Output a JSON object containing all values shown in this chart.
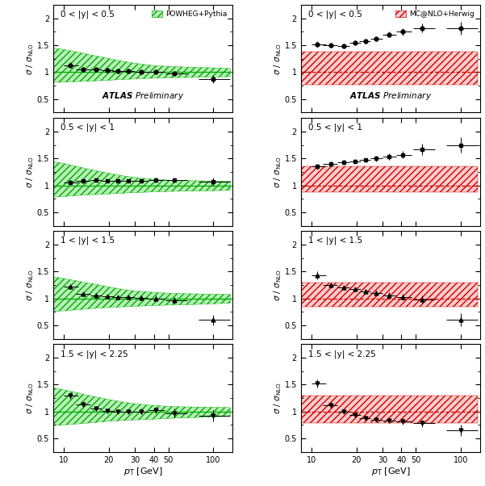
{
  "rapidity_labels": [
    "0 < |y| < 0.5",
    "0.5 < |y| < 1",
    "1 < |y| < 1.5",
    "1.5 < |y| < 2.25"
  ],
  "pt_centers": [
    11,
    13.5,
    16.5,
    19.5,
    23,
    27,
    33,
    41,
    55,
    100
  ],
  "pt_xerr_low": [
    1,
    1.5,
    1.5,
    1.5,
    2,
    2,
    3,
    4,
    7,
    20
  ],
  "pt_xerr_high": [
    1.5,
    1.5,
    1.5,
    2,
    2,
    3,
    4,
    6,
    12,
    30
  ],
  "powheg_y": [
    [
      1.13,
      1.05,
      1.05,
      1.03,
      1.02,
      1.02,
      1.01,
      1.0,
      0.98,
      0.87
    ],
    [
      1.06,
      1.08,
      1.1,
      1.09,
      1.09,
      1.09,
      1.09,
      1.1,
      1.1,
      1.07
    ],
    [
      1.22,
      1.08,
      1.05,
      1.04,
      1.03,
      1.02,
      1.01,
      1.0,
      0.97,
      0.6
    ],
    [
      1.3,
      1.13,
      1.05,
      1.01,
      1.0,
      1.0,
      1.0,
      1.02,
      0.97,
      0.92
    ]
  ],
  "powheg_yerr": [
    [
      0.05,
      0.04,
      0.03,
      0.03,
      0.03,
      0.03,
      0.03,
      0.03,
      0.04,
      0.07
    ],
    [
      0.04,
      0.04,
      0.03,
      0.03,
      0.03,
      0.03,
      0.03,
      0.04,
      0.05,
      0.07
    ],
    [
      0.05,
      0.04,
      0.04,
      0.03,
      0.03,
      0.03,
      0.04,
      0.05,
      0.06,
      0.1
    ],
    [
      0.06,
      0.05,
      0.04,
      0.04,
      0.04,
      0.04,
      0.05,
      0.06,
      0.08,
      0.1
    ]
  ],
  "powheg_band_lo": [
    [
      0.82,
      0.83,
      0.84,
      0.85,
      0.86,
      0.87,
      0.88,
      0.89,
      0.9,
      0.91
    ],
    [
      0.8,
      0.82,
      0.83,
      0.84,
      0.85,
      0.86,
      0.87,
      0.88,
      0.89,
      0.9
    ],
    [
      0.78,
      0.8,
      0.82,
      0.83,
      0.84,
      0.85,
      0.86,
      0.87,
      0.88,
      0.9
    ],
    [
      0.76,
      0.78,
      0.8,
      0.82,
      0.83,
      0.84,
      0.85,
      0.86,
      0.88,
      0.9
    ]
  ],
  "powheg_band_hi": [
    [
      1.4,
      1.35,
      1.3,
      1.26,
      1.22,
      1.18,
      1.15,
      1.12,
      1.1,
      1.08
    ],
    [
      1.38,
      1.32,
      1.27,
      1.23,
      1.19,
      1.16,
      1.13,
      1.11,
      1.09,
      1.08
    ],
    [
      1.35,
      1.3,
      1.26,
      1.22,
      1.18,
      1.15,
      1.13,
      1.11,
      1.09,
      1.08
    ],
    [
      1.38,
      1.32,
      1.27,
      1.23,
      1.19,
      1.16,
      1.13,
      1.11,
      1.09,
      1.08
    ]
  ],
  "mcnlo_y": [
    [
      1.52,
      1.5,
      1.49,
      1.55,
      1.57,
      1.62,
      1.7,
      1.75,
      1.82,
      1.82
    ],
    [
      1.35,
      1.4,
      1.43,
      1.45,
      1.47,
      1.5,
      1.53,
      1.57,
      1.67,
      1.75
    ],
    [
      1.43,
      1.25,
      1.2,
      1.17,
      1.13,
      1.1,
      1.06,
      1.02,
      0.98,
      0.6
    ],
    [
      1.52,
      1.12,
      1.0,
      0.93,
      0.88,
      0.85,
      0.83,
      0.82,
      0.78,
      0.65
    ]
  ],
  "mcnlo_yerr": [
    [
      0.05,
      0.04,
      0.04,
      0.04,
      0.04,
      0.05,
      0.05,
      0.07,
      0.08,
      0.12
    ],
    [
      0.05,
      0.04,
      0.04,
      0.04,
      0.04,
      0.05,
      0.06,
      0.07,
      0.1,
      0.14
    ],
    [
      0.07,
      0.05,
      0.04,
      0.04,
      0.04,
      0.04,
      0.05,
      0.06,
      0.07,
      0.12
    ],
    [
      0.08,
      0.05,
      0.04,
      0.04,
      0.04,
      0.04,
      0.05,
      0.06,
      0.07,
      0.1
    ]
  ],
  "mcnlo_band_lo_row0": [
    0.76,
    0.76,
    0.76,
    0.76,
    0.76,
    0.76,
    0.76,
    0.76,
    0.76,
    0.76
  ],
  "mcnlo_band_hi_row0": [
    1.38,
    1.38,
    1.38,
    1.38,
    1.38,
    1.38,
    1.38,
    1.38,
    1.38,
    1.38
  ],
  "mcnlo_band_lo_row1": [
    0.88,
    0.88,
    0.88,
    0.88,
    0.88,
    0.88,
    0.88,
    0.88,
    0.88,
    0.88
  ],
  "mcnlo_band_hi_row1": [
    1.35,
    1.35,
    1.35,
    1.35,
    1.35,
    1.35,
    1.35,
    1.35,
    1.35,
    1.35
  ],
  "mcnlo_band_lo_row2": [
    0.85,
    0.85,
    0.85,
    0.85,
    0.85,
    0.85,
    0.85,
    0.85,
    0.85,
    0.85
  ],
  "mcnlo_band_hi_row2": [
    1.3,
    1.3,
    1.3,
    1.3,
    1.3,
    1.3,
    1.3,
    1.3,
    1.3,
    1.3
  ],
  "mcnlo_band_lo_row3": [
    0.78,
    0.78,
    0.78,
    0.78,
    0.78,
    0.78,
    0.78,
    0.78,
    0.78,
    0.78
  ],
  "mcnlo_band_hi_row3": [
    1.3,
    1.3,
    1.3,
    1.3,
    1.3,
    1.3,
    1.3,
    1.3,
    1.3,
    1.3
  ],
  "markers": [
    "o",
    "s",
    "^",
    "v"
  ],
  "green_color": "#00aa00",
  "red_color": "#cc0000",
  "ylim": [
    0.25,
    2.25
  ],
  "yticks": [
    0.5,
    1.0,
    1.5,
    2.0
  ]
}
